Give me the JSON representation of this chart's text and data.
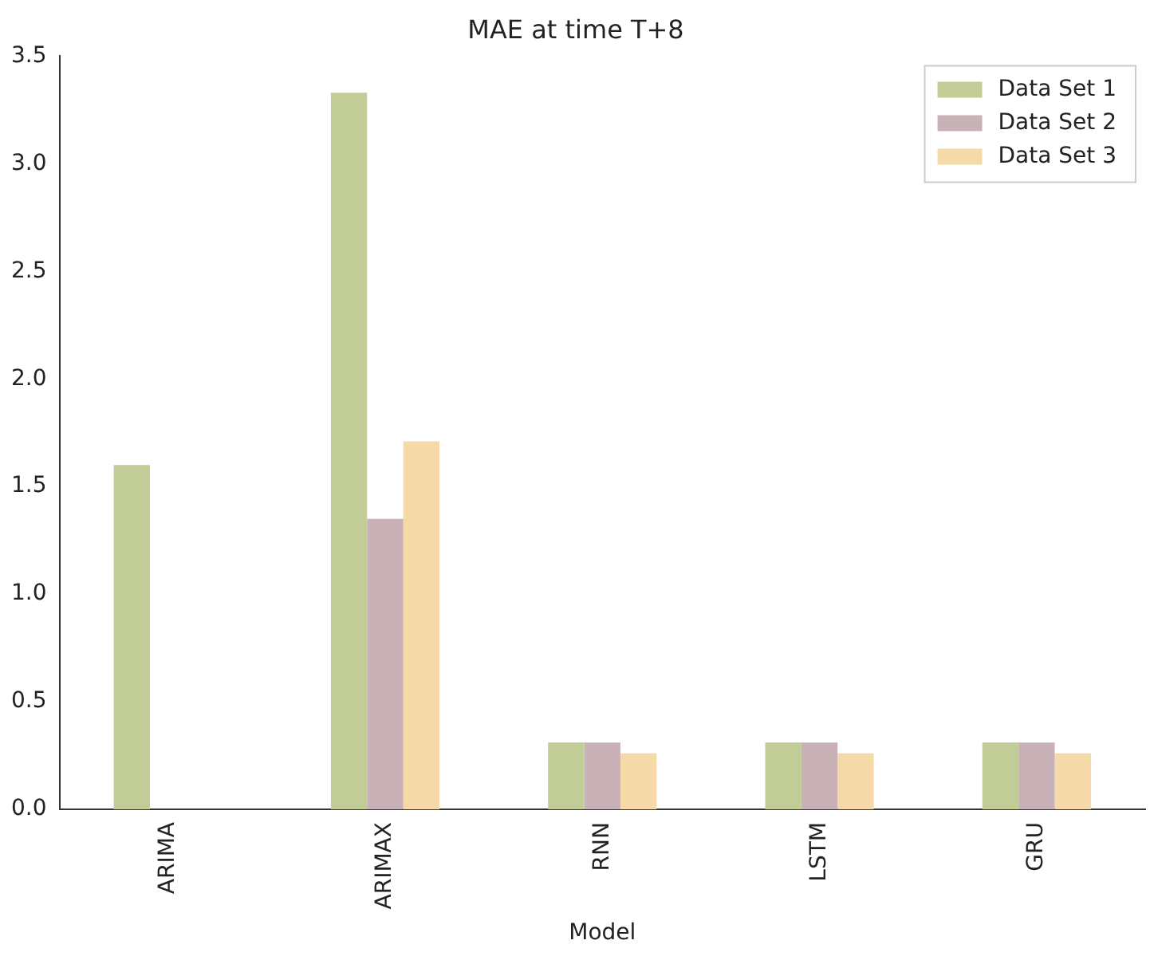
{
  "chart_data": {
    "type": "bar",
    "title": "MAE at time T+8",
    "xlabel": "Model",
    "categories": [
      "ARIMA",
      "ARIMAX",
      "RNN",
      "LSTM",
      "GRU"
    ],
    "series": [
      {
        "name": "Data Set 1",
        "color": "#c2cc96",
        "values": [
          1.6,
          3.33,
          0.31,
          0.31,
          0.31
        ]
      },
      {
        "name": "Data Set 2",
        "color": "#c9b1b8",
        "values": [
          null,
          1.35,
          0.31,
          0.31,
          0.31
        ]
      },
      {
        "name": "Data Set 3",
        "color": "#f5d9a8",
        "values": [
          null,
          1.71,
          0.26,
          0.26,
          0.26
        ]
      }
    ],
    "ylim": [
      0,
      3.5
    ],
    "yticks": [
      {
        "value": 0,
        "label": "0.0"
      },
      0.5,
      {
        "value": 1,
        "label": "1.0"
      },
      1.5,
      {
        "value": 2,
        "label": "2.0"
      },
      2.5,
      {
        "value": 3,
        "label": "3.0"
      },
      3.5
    ],
    "grid": false,
    "legend": "top right"
  }
}
